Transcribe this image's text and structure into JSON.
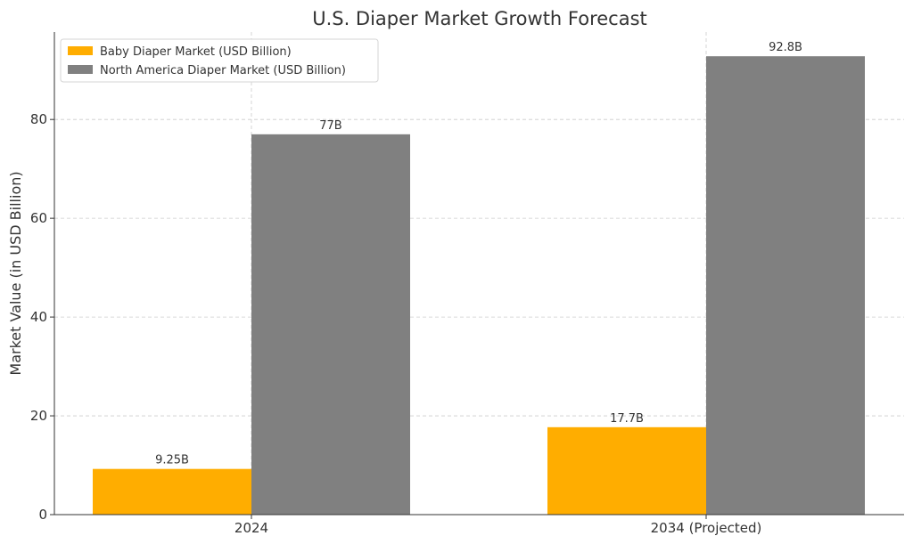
{
  "chart_data": {
    "type": "bar",
    "title": "U.S. Diaper Market Growth Forecast",
    "xlabel": "",
    "ylabel": "Market Value (in USD Billion)",
    "categories": [
      "2024",
      "2034 (Projected)"
    ],
    "series": [
      {
        "name": "Baby Diaper Market (USD Billion)",
        "color": "#ffad00",
        "values": [
          9.25,
          17.7
        ],
        "labels": [
          "9.25B",
          "17.7B"
        ]
      },
      {
        "name": "North America Diaper Market (USD Billion)",
        "color": "#808080",
        "values": [
          77,
          92.8
        ],
        "labels": [
          "77B",
          "92.8B"
        ]
      }
    ],
    "ylim": [
      0,
      97.7
    ],
    "yticks": [
      0,
      20,
      40,
      60,
      80
    ],
    "grid": true,
    "legend_position": "top-left"
  }
}
